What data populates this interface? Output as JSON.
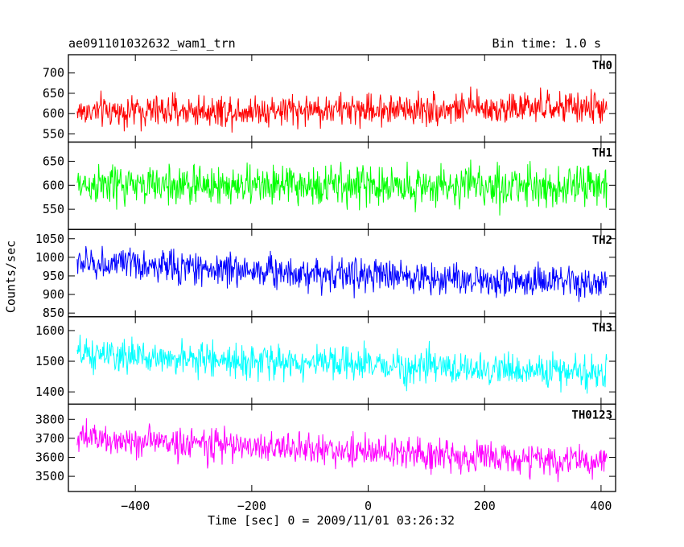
{
  "chart_data": {
    "type": "line",
    "title": "ae091101032632_wam1_trn",
    "subtitle": "Bin time: 1.0 s",
    "xlabel": "Time [sec] 0 = 2009/11/01 03:26:32",
    "ylabel": "Counts/sec",
    "xlim": [
      -515,
      425
    ],
    "xticks": [
      -400,
      -200,
      0,
      200,
      400
    ],
    "x_range": [
      -500,
      410
    ],
    "bin": 1.0,
    "grid": false,
    "panels": [
      {
        "name": "TH0",
        "color": "#ff0000",
        "ylim": [
          530,
          745
        ],
        "yticks": [
          550,
          600,
          650,
          700
        ],
        "mean_start": 605,
        "mean_end": 615,
        "spread": 28
      },
      {
        "name": "TH1",
        "color": "#00ff00",
        "ylim": [
          508,
          690
        ],
        "yticks": [
          550,
          600,
          650
        ],
        "mean_start": 600,
        "mean_end": 598,
        "spread": 30
      },
      {
        "name": "TH2",
        "color": "#0000ff",
        "ylim": [
          840,
          1075
        ],
        "yticks": [
          850,
          900,
          950,
          1000,
          1050
        ],
        "mean_start": 985,
        "mean_end": 925,
        "spread": 32
      },
      {
        "name": "TH3",
        "color": "#00ffff",
        "ylim": [
          1360,
          1645
        ],
        "yticks": [
          1400,
          1500,
          1600
        ],
        "mean_start": 1520,
        "mean_end": 1460,
        "spread": 38
      },
      {
        "name": "TH0123",
        "color": "#ff00ff",
        "ylim": [
          3420,
          3880
        ],
        "yticks": [
          3500,
          3600,
          3700,
          3800
        ],
        "mean_start": 3700,
        "mean_end": 3570,
        "spread": 60
      }
    ]
  }
}
